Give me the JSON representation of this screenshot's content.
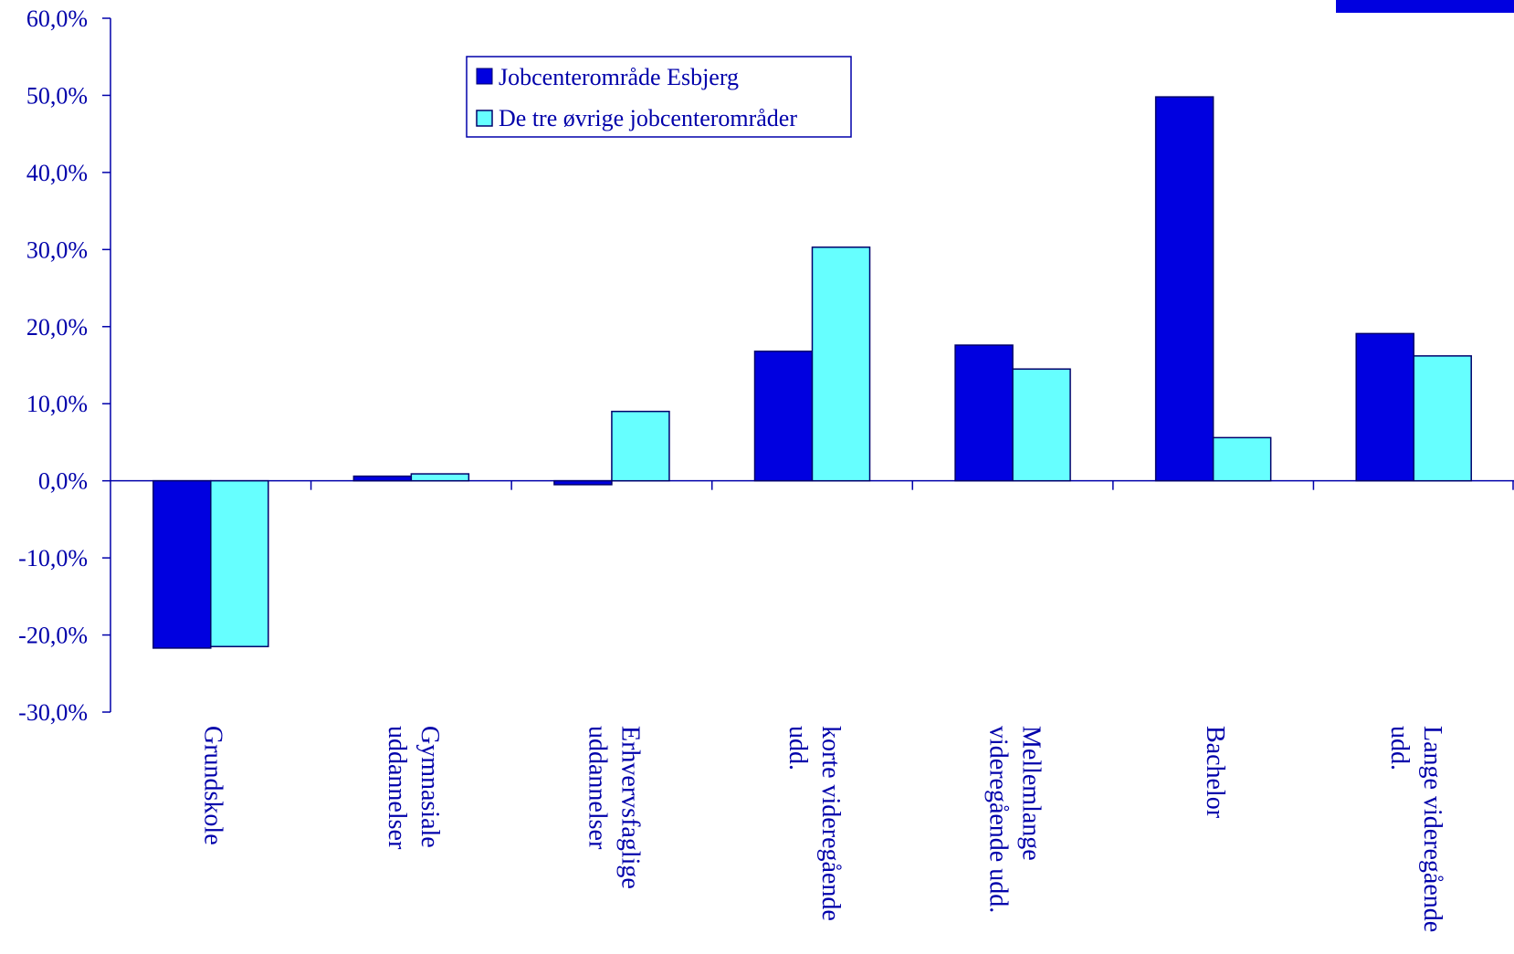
{
  "chart_data": {
    "type": "bar",
    "title": "",
    "xlabel": "",
    "ylabel": "",
    "ylim": [
      -30,
      60
    ],
    "yticks": [
      -30,
      -20,
      -10,
      0,
      10,
      20,
      30,
      40,
      50,
      60
    ],
    "ytick_labels": [
      "-30,0%",
      "-20,0%",
      "-10,0%",
      "0,0%",
      "10,0%",
      "20,0%",
      "30,0%",
      "40,0%",
      "50,0%",
      "60,0%"
    ],
    "grid": false,
    "legend_position": "top-center",
    "categories": [
      [
        "Grundskole"
      ],
      [
        "Gymnasiale",
        "uddannelser"
      ],
      [
        "Erhvervsfaglige",
        "uddannelser"
      ],
      [
        "korte videregående",
        "udd."
      ],
      [
        "Mellemlange",
        "videregående udd."
      ],
      [
        "Bachelor"
      ],
      [
        "Lange videregående",
        "udd."
      ]
    ],
    "series": [
      {
        "name": "Jobcenterområde Esbjerg",
        "color": "#0000e0",
        "values": [
          -21.7,
          0.6,
          -0.5,
          16.8,
          17.6,
          49.8,
          19.1
        ]
      },
      {
        "name": "De tre øvrige jobcenterområder",
        "color": "#66ffff",
        "values": [
          -21.5,
          0.9,
          9.0,
          30.3,
          14.5,
          5.6,
          16.2
        ]
      }
    ],
    "colors": {
      "axis": "#0000aa",
      "bar_stroke": "#00006b"
    }
  }
}
